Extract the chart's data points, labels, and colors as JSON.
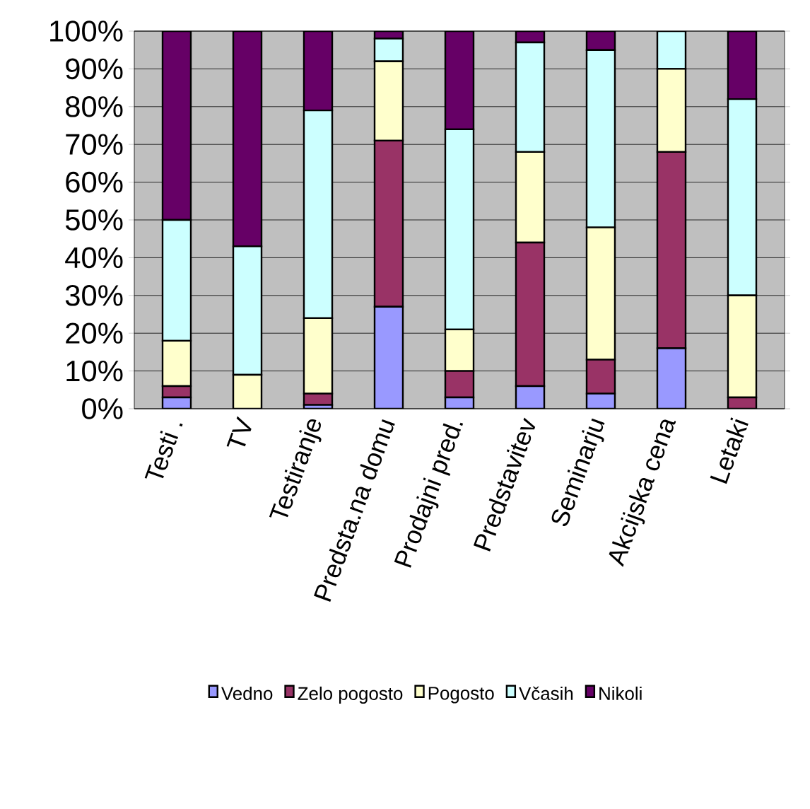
{
  "chart_data": {
    "type": "bar",
    "stacked": true,
    "categories": [
      "Testi .",
      "TV",
      "Testiranje",
      "Predsta.na domu",
      "Prodajni pred.",
      "Predstavitev",
      "Seminarju",
      "Akcijska cena",
      "Letaki"
    ],
    "series": [
      {
        "name": "Vedno",
        "color": "#9999ff",
        "values": [
          3,
          0,
          1,
          27,
          3,
          6,
          4,
          16,
          0
        ]
      },
      {
        "name": "Zelo pogosto",
        "color": "#993366",
        "values": [
          3,
          0,
          3,
          44,
          7,
          38,
          9,
          52,
          3
        ]
      },
      {
        "name": "Pogosto",
        "color": "#ffffcc",
        "values": [
          12,
          9,
          20,
          21,
          11,
          24,
          35,
          22,
          27
        ]
      },
      {
        "name": "Včasih",
        "color": "#ccffff",
        "values": [
          32,
          34,
          55,
          6,
          53,
          29,
          47,
          10,
          52
        ]
      },
      {
        "name": "Nikoli",
        "color": "#660066",
        "values": [
          50,
          57,
          21,
          2,
          26,
          3,
          5,
          0,
          18
        ]
      }
    ],
    "ylim": [
      0,
      100
    ],
    "yticks": [
      {
        "value": 0,
        "label": "0%"
      },
      {
        "value": 10,
        "label": "10%"
      },
      {
        "value": 20,
        "label": "20%"
      },
      {
        "value": 30,
        "label": "30%"
      },
      {
        "value": 40,
        "label": "40%"
      },
      {
        "value": 50,
        "label": "50%"
      },
      {
        "value": 60,
        "label": "60%"
      },
      {
        "value": 70,
        "label": "70%"
      },
      {
        "value": 80,
        "label": "80%"
      },
      {
        "value": 90,
        "label": "90%"
      },
      {
        "value": 100,
        "label": "100%"
      }
    ],
    "grid": "y",
    "legend": "bottom"
  }
}
